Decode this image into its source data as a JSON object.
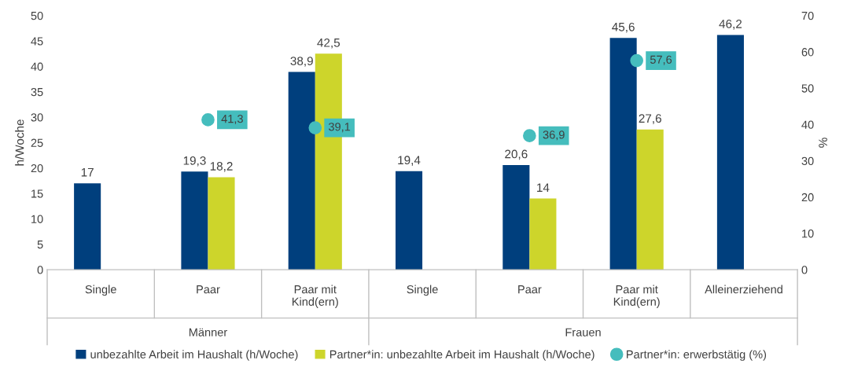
{
  "chart_data": {
    "type": "bar",
    "categories": [
      "Single",
      "Paar",
      "Paar mit\nKind(ern)",
      "Single",
      "Paar",
      "Paar mit\nKind(ern)",
      "Alleinerziehend"
    ],
    "series": [
      {
        "name": "unbezahlte Arbeit im Haushalt (h/Woche)",
        "color": "#003f7d",
        "values": [
          17,
          19.3,
          38.9,
          19.4,
          20.6,
          45.6,
          46.2
        ],
        "value_labels": [
          "17",
          "19,3",
          "38,9",
          "19,4",
          "20,6",
          "45,6",
          "46,2"
        ]
      },
      {
        "name": "Partner*in: unbezahlte Arbeit im Haushalt (h/Woche)",
        "color": "#cdd52b",
        "values": [
          null,
          18.2,
          42.5,
          null,
          14,
          27.6,
          null
        ],
        "value_labels": [
          null,
          "18,2",
          "42,5",
          null,
          "14",
          "27,6",
          null
        ]
      },
      {
        "name": "Partner*in: erwerbstätig (%)",
        "color": "#45bdbd",
        "type": "scatter",
        "axis": "y2",
        "marker": "circle",
        "values": [
          null,
          41.3,
          39.1,
          null,
          36.9,
          57.6,
          null
        ],
        "value_labels": [
          null,
          "41,3",
          "39,1",
          null,
          "36,9",
          "57,6",
          null
        ]
      }
    ],
    "ylabel": "h/Woche",
    "y2label": "%",
    "ylim": [
      0,
      50
    ],
    "yticks": [
      0,
      5,
      10,
      15,
      20,
      25,
      30,
      35,
      40,
      45,
      50
    ],
    "y2lim": [
      0,
      70
    ],
    "y2ticks": [
      0,
      10,
      20,
      30,
      40,
      50,
      60,
      70
    ],
    "annotations": [
      "Männer",
      "Frauen"
    ],
    "grid": false,
    "legend": "bottom"
  }
}
